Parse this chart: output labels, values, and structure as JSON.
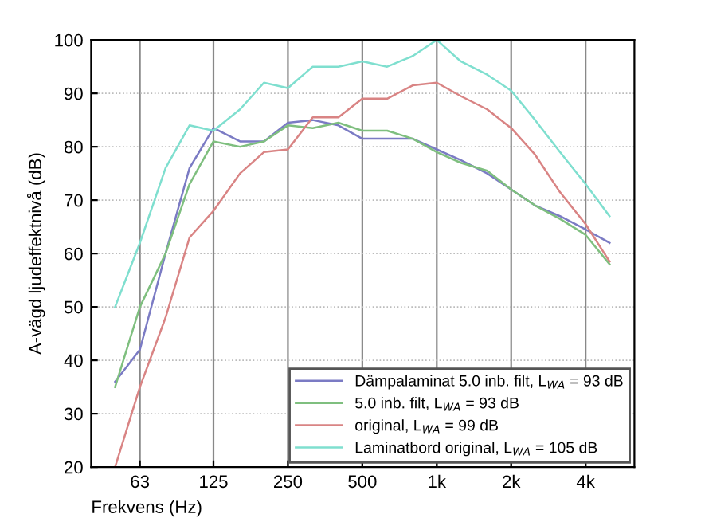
{
  "chart_data": {
    "type": "line",
    "xlabel": "Frekvens (Hz)",
    "ylabel": "A-vägd ljudeffektnivå (dB)",
    "x": [
      50,
      63,
      80,
      100,
      125,
      160,
      200,
      250,
      315,
      400,
      500,
      630,
      800,
      1000,
      1250,
      1600,
      2000,
      2500,
      3150,
      4000,
      5000
    ],
    "series": [
      {
        "name": "Dämpalaminat 5.0 inb. filt, L$_{WA}$ = 93 dB",
        "color": "#7b7bc4",
        "values": [
          36,
          42,
          60,
          76,
          83.5,
          81,
          81,
          84.5,
          85,
          84,
          81.5,
          81.5,
          81.5,
          79.5,
          77.5,
          75,
          72,
          69,
          67,
          64.5,
          62
        ]
      },
      {
        "name": "5.0 inb. filt, L$_{WA}$ = 93 dB",
        "color": "#7fbf7f",
        "values": [
          35,
          50,
          60,
          73,
          81,
          80,
          81,
          84,
          83.5,
          84.5,
          83,
          83,
          81.5,
          79,
          77,
          75.5,
          72,
          69,
          66.5,
          63.5,
          58
        ]
      },
      {
        "name": "original, L$_{WA}$ = 99 dB",
        "color": "#d98484",
        "values": [
          20,
          35,
          48,
          63,
          68,
          75,
          79,
          79.5,
          85.5,
          85.5,
          89,
          89,
          91.5,
          92,
          89.5,
          87,
          83.5,
          78.5,
          71.5,
          65.5,
          58.5
        ]
      },
      {
        "name": "Laminatbord original, L$_{WA}$ = 105 dB",
        "color": "#7fdfcf",
        "values": [
          50,
          62,
          76,
          84,
          83,
          87,
          92,
          91,
          95,
          95,
          96,
          95,
          97,
          100,
          96,
          93.5,
          90.5,
          85,
          79,
          73,
          67
        ]
      }
    ],
    "log": "x",
    "xlim": [
      40,
      6300
    ],
    "xticks": [
      63,
      125,
      250,
      500,
      {
        "value": 1000,
        "label": "1k"
      },
      {
        "value": 2000,
        "label": "2k"
      },
      {
        "value": 4000,
        "label": "4k"
      }
    ],
    "ylim": [
      20,
      100
    ],
    "yticks": [
      20,
      30,
      40,
      50,
      60,
      70,
      80,
      90,
      100
    ],
    "grid": true,
    "legend": "bottom right",
    "line_style": "solid",
    "marker": "none"
  }
}
